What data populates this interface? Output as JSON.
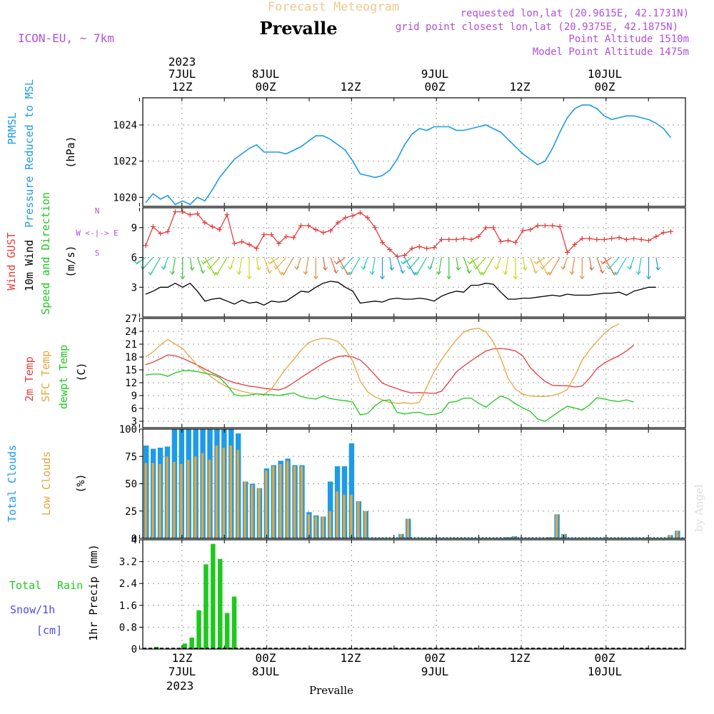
{
  "header": {
    "subtitle": "Forecast Meteogram",
    "location": "Prevalle",
    "model": "ICON-EU, ~ 7km",
    "requested": "requested lon,lat (20.9615E, 42.1731N)",
    "grid_point": "grid point closest lon,lat (20.9375E, 42.1875N)",
    "point_altitude": "Point Altitude 1510m",
    "model_altitude": "Model Point Altitude 1475m",
    "footer_location": "Prevalle",
    "watermark": "by Angel"
  },
  "colors": {
    "pressure": "#1e9be6",
    "gust": "#e63c3c",
    "wind": "#000000",
    "temp": "#e63c3c",
    "sfc": "#e6a53c",
    "dewpt": "#1ec81e",
    "total_clouds": "#1e9be6",
    "low_clouds": "#e6a53c",
    "rain": "#1ec81e",
    "snow": "#4a4af0",
    "purple": "#b050d8"
  },
  "time_axis": {
    "top_year": "2023",
    "labels": [
      {
        "day": "7JUL",
        "hour": "12Z",
        "hours": 12
      },
      {
        "day": "8JUL",
        "hour": "00Z",
        "hours": 24
      },
      {
        "day": "",
        "hour": "12Z",
        "hours": 36
      },
      {
        "day": "9JUL",
        "hour": "00Z",
        "hours": 48
      },
      {
        "day": "",
        "hour": "12Z",
        "hours": 60
      },
      {
        "day": "10JUL",
        "hour": "00Z",
        "hours": 72
      }
    ],
    "bottom_year": "2023"
  },
  "chart_data": [
    {
      "id": "pressure",
      "type": "line",
      "ylabel_lines": [
        "PRMSL",
        "Pressure Reduced to MSL"
      ],
      "unit": "(hPa)",
      "ylim": [
        1019.5,
        1025.5
      ],
      "yticks": [
        1020,
        1022,
        1024
      ],
      "x_start": 0,
      "x_step": 1,
      "values": [
        1019.7,
        1020.2,
        1019.9,
        1020.1,
        1019.6,
        1019.8,
        1019.6,
        1020.0,
        1019.8,
        1020.4,
        1021.1,
        1021.6,
        1022.1,
        1022.4,
        1022.7,
        1022.9,
        1022.5,
        1022.5,
        1022.5,
        1022.4,
        1022.6,
        1022.8,
        1023.1,
        1023.4,
        1023.4,
        1023.2,
        1022.9,
        1022.6,
        1022.0,
        1021.3,
        1021.2,
        1021.1,
        1021.2,
        1021.5,
        1022.1,
        1022.9,
        1023.5,
        1023.8,
        1023.7,
        1023.9,
        1023.9,
        1023.9,
        1023.7,
        1023.7,
        1023.8,
        1023.9,
        1024.0,
        1023.8,
        1023.6,
        1023.2,
        1022.8,
        1022.4,
        1022.1,
        1021.8,
        1022.0,
        1022.7,
        1023.6,
        1024.4,
        1024.9,
        1025.1,
        1025.1,
        1024.9,
        1024.5,
        1024.3,
        1024.4,
        1024.5,
        1024.5,
        1024.4,
        1024.3,
        1024.1,
        1023.8,
        1023.3
      ]
    },
    {
      "id": "wind",
      "type": "line",
      "ylabel_lines": [
        "Wind GUST",
        "10m Wind",
        "Speed and Direction"
      ],
      "unit": "(m/s)",
      "compass": [
        "N",
        "W <-|-> E",
        "S"
      ],
      "ylim": [
        0,
        11
      ],
      "yticks": [
        3,
        6,
        9
      ],
      "x_start": 0,
      "x_step": 1,
      "series": [
        {
          "name": "Wind GUST",
          "values": [
            7.2,
            9.1,
            8.4,
            8.6,
            10.6,
            10.6,
            10.3,
            10.4,
            9.5,
            9.1,
            8.8,
            10.3,
            7.4,
            7.6,
            7.3,
            6.9,
            8.3,
            8.3,
            7.4,
            8.1,
            8.0,
            9.2,
            9.2,
            8.8,
            8.5,
            8.7,
            9.5,
            10.0,
            10.2,
            10.5,
            10.0,
            9.0,
            7.5,
            6.8,
            6.1,
            6.2,
            6.9,
            7.1,
            6.9,
            7.0,
            7.8,
            7.8,
            7.8,
            7.9,
            7.8,
            8.1,
            9.0,
            9.0,
            7.6,
            7.7,
            7.5,
            8.7,
            8.8,
            9.2,
            9.2,
            9.2,
            9.1,
            6.5,
            7.3,
            7.9,
            7.9,
            7.8,
            7.8,
            7.9,
            8.0,
            7.8,
            7.9,
            7.8,
            7.7,
            8.1,
            8.5,
            8.6
          ]
        },
        {
          "name": "10m Wind",
          "values": [
            2.3,
            2.6,
            3.0,
            3.0,
            3.4,
            3.0,
            3.4,
            2.6,
            1.6,
            1.8,
            1.9,
            1.6,
            1.3,
            1.7,
            1.4,
            1.5,
            1.2,
            1.6,
            1.5,
            1.6,
            2.1,
            2.6,
            2.5,
            3.0,
            3.4,
            3.6,
            3.5,
            3.0,
            2.6,
            1.4,
            1.5,
            1.6,
            1.5,
            1.8,
            1.9,
            1.8,
            1.8,
            1.9,
            1.8,
            1.6,
            2.1,
            2.4,
            2.6,
            2.5,
            3.2,
            3.2,
            3.4,
            3.3,
            2.5,
            1.8,
            1.8,
            1.9,
            1.9,
            2.0,
            2.1,
            2.2,
            2.1,
            2.3,
            2.2,
            2.2,
            2.2,
            2.3,
            2.4,
            2.4,
            2.5,
            2.2,
            2.6,
            2.8,
            3.0,
            3.0
          ]
        }
      ]
    },
    {
      "id": "temperature",
      "type": "line",
      "ylabel_lines": [
        "2m Temp",
        "SFC Temp",
        "dewpt Temp"
      ],
      "unit": "(C)",
      "ylim": [
        1.5,
        27
      ],
      "yticks": [
        3,
        6,
        9,
        12,
        15,
        18,
        21,
        24,
        27
      ],
      "x_start": 0,
      "x_step": 1,
      "series": [
        {
          "name": "2m Temp",
          "values": [
            16.2,
            16.8,
            17.6,
            18.5,
            18.3,
            17.7,
            16.9,
            16.1,
            15.2,
            14.3,
            13.5,
            12.6,
            12.0,
            11.6,
            11.2,
            11.0,
            10.7,
            10.5,
            10.3,
            10.9,
            12.0,
            13.2,
            14.3,
            15.4,
            16.5,
            17.4,
            18.1,
            18.3,
            18.0,
            17.3,
            15.7,
            13.8,
            11.9,
            11.2,
            10.6,
            10.0,
            9.6,
            9.7,
            9.6,
            9.5,
            10.0,
            12.2,
            14.5,
            15.9,
            17.1,
            18.3,
            19.4,
            19.9,
            20.0,
            19.8,
            19.4,
            18.2,
            15.5,
            13.8,
            12.3,
            11.4,
            11.3,
            11.3,
            11.0,
            11.2,
            13.0,
            15.3,
            16.6,
            17.5,
            18.3,
            19.4,
            20.8
          ]
        },
        {
          "name": "SFC Temp",
          "values": [
            18.0,
            19.2,
            20.8,
            22.1,
            21.0,
            20.0,
            18.0,
            16.0,
            14.5,
            13.2,
            12.0,
            11.0,
            10.5,
            10.0,
            9.6,
            9.4,
            9.3,
            10.5,
            13.0,
            15.4,
            17.4,
            19.6,
            21.3,
            22.0,
            22.4,
            22.2,
            21.6,
            19.8,
            17.0,
            12.4,
            9.9,
            8.7,
            8.0,
            7.4,
            7.2,
            7.3,
            7.1,
            7.4,
            11.0,
            14.6,
            17.4,
            19.8,
            22.0,
            23.8,
            24.5,
            24.7,
            23.9,
            21.5,
            17.8,
            13.0,
            10.5,
            9.3,
            8.9,
            8.8,
            8.8,
            9.0,
            9.5,
            10.4,
            13.5,
            17.2,
            19.6,
            21.6,
            23.5,
            24.9,
            25.7
          ]
        },
        {
          "name": "dewpt Temp",
          "values": [
            13.8,
            14.0,
            14.0,
            13.5,
            14.3,
            14.8,
            14.8,
            14.6,
            14.2,
            13.9,
            13.2,
            11.4,
            9.2,
            8.9,
            9.1,
            9.4,
            9.2,
            9.2,
            9.0,
            9.3,
            9.6,
            8.8,
            8.4,
            8.2,
            8.9,
            8.3,
            8.0,
            7.8,
            7.5,
            4.5,
            4.8,
            6.6,
            7.8,
            8.0,
            5.1,
            4.7,
            5.0,
            5.1,
            4.5,
            4.6,
            5.1,
            7.4,
            7.6,
            8.4,
            8.4,
            7.2,
            6.3,
            7.7,
            8.9,
            8.3,
            7.1,
            6.1,
            5.3,
            3.5,
            3.0,
            4.2,
            5.4,
            6.5,
            6.1,
            5.6,
            6.8,
            8.5,
            8.2,
            7.8,
            7.6,
            8.0,
            7.5
          ]
        }
      ]
    },
    {
      "id": "clouds",
      "type": "bar",
      "ylabel_lines": [
        "Total Clouds",
        "Low Clouds"
      ],
      "unit": "(%)",
      "ylim": [
        0,
        100
      ],
      "yticks": [
        0,
        25,
        50,
        75,
        100
      ],
      "x_start": 0,
      "x_step": 1,
      "series": [
        {
          "name": "Total Clouds",
          "values": [
            85,
            82,
            83,
            84,
            100,
            100,
            100,
            100,
            100,
            100,
            100,
            100,
            100,
            96,
            52,
            50,
            46,
            64,
            67,
            71,
            73,
            67,
            67,
            24,
            21,
            20,
            52,
            66,
            66,
            87,
            34,
            25,
            0,
            0,
            0,
            0,
            4,
            18,
            0,
            0,
            0,
            0,
            0,
            0,
            0,
            0,
            0,
            0,
            0,
            0,
            0,
            1,
            2,
            0,
            0,
            0,
            0,
            1,
            22,
            4,
            0,
            0,
            0,
            0,
            0,
            0,
            0,
            0,
            0,
            0,
            0,
            0,
            0,
            0,
            3,
            7
          ]
        },
        {
          "name": "Low Clouds",
          "values": [
            69,
            69,
            68,
            75,
            70,
            68,
            72,
            75,
            78,
            72,
            85,
            83,
            85,
            81,
            52,
            49,
            46,
            62,
            66,
            68,
            71,
            66,
            66,
            22,
            20,
            20,
            25,
            43,
            40,
            40,
            34,
            25,
            0,
            0,
            0,
            0,
            4,
            18,
            0,
            0,
            0,
            0,
            0,
            0,
            0,
            0,
            0,
            0,
            0,
            0,
            0,
            1,
            2,
            0,
            0,
            0,
            0,
            1,
            22,
            4,
            0,
            0,
            0,
            0,
            0,
            0,
            0,
            0,
            0,
            0,
            0,
            0,
            0,
            0,
            3,
            7
          ]
        }
      ]
    },
    {
      "id": "precip",
      "type": "bar",
      "ylabel_lines": [
        "1hr Precip (mm)"
      ],
      "legend": [
        "Total",
        "Rain",
        "Snow/1h",
        "[cm]"
      ],
      "ylim": [
        0,
        4
      ],
      "yticks": [
        0,
        0.8,
        1.6,
        2.4,
        3.2,
        4
      ],
      "ytick_labels": [
        "0",
        "0.8",
        "1.6",
        "2.4",
        "3.2",
        "4"
      ],
      "x_start": 0,
      "x_step": 1,
      "series": [
        {
          "name": "Total Rain",
          "values": [
            0,
            0.08,
            0,
            0,
            0,
            0.2,
            0.42,
            1.42,
            3.1,
            3.85,
            3.3,
            1.32,
            1.92,
            0,
            0
          ]
        }
      ]
    }
  ]
}
